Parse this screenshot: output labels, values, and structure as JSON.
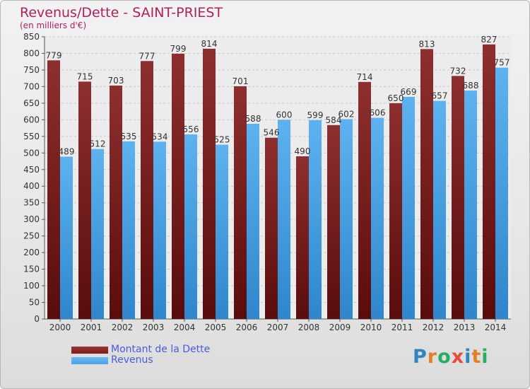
{
  "header": {
    "title": "Revenus/Dette - SAINT-PRIEST",
    "subtitle": "(en milliers d'€)"
  },
  "legend": [
    {
      "label": "Montant de la Dette",
      "color": "#7a1c1c"
    },
    {
      "label": "Revenus",
      "color": "#4aa3e8"
    }
  ],
  "logo": {
    "text": "Proxiti",
    "letters": [
      {
        "ch": "P",
        "color": "#2e86c1"
      },
      {
        "ch": "r",
        "color": "#e67e22"
      },
      {
        "ch": "o",
        "color": "#27ae60"
      },
      {
        "ch": "x",
        "color": "#e74c3c"
      },
      {
        "ch": "i",
        "color": "#2e86c1"
      },
      {
        "ch": "t",
        "color": "#e67e22"
      },
      {
        "ch": "i",
        "color": "#27ae60"
      }
    ]
  },
  "chart_data": {
    "type": "bar",
    "title": "Revenus/Dette - SAINT-PRIEST",
    "subtitle": "(en milliers d'€)",
    "categories": [
      "2000",
      "2001",
      "2002",
      "2003",
      "2004",
      "2005",
      "2006",
      "2007",
      "2008",
      "2009",
      "2010",
      "2011",
      "2012",
      "2013",
      "2014"
    ],
    "series": [
      {
        "name": "Montant de la Dette",
        "color": "#7a1c1c",
        "values": [
          779,
          715,
          703,
          777,
          799,
          814,
          701,
          546,
          490,
          584,
          714,
          650,
          813,
          732,
          827
        ]
      },
      {
        "name": "Revenus",
        "color": "#4aa3e8",
        "values": [
          489,
          512,
          535,
          534,
          556,
          525,
          588,
          600,
          599,
          602,
          606,
          669,
          657,
          688,
          757
        ]
      }
    ],
    "ylim": [
      0,
      850
    ],
    "yticks": [
      0,
      50,
      100,
      150,
      200,
      250,
      300,
      350,
      400,
      450,
      500,
      550,
      600,
      650,
      700,
      750,
      800,
      850
    ],
    "grid": true,
    "legend_position": "bottom-left"
  }
}
